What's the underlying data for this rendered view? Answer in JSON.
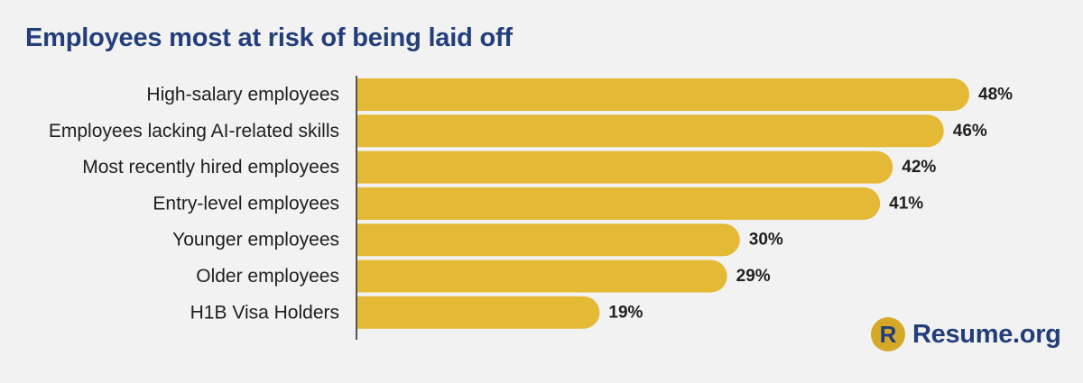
{
  "chart_data": {
    "type": "bar",
    "orientation": "horizontal",
    "title": "Employees most at risk of being laid off",
    "categories": [
      "High-salary employees",
      "Employees lacking AI-related skills",
      "Most recently hired employees",
      "Entry-level employees",
      "Younger employees",
      "Older employees",
      "H1B Visa Holders"
    ],
    "values": [
      48,
      46,
      42,
      41,
      30,
      29,
      19
    ],
    "value_labels": [
      "48%",
      "46%",
      "42%",
      "41%",
      "30%",
      "29%",
      "19%"
    ],
    "unit": "%",
    "xlim": [
      0,
      48
    ],
    "bar_color": "#e4b935",
    "grid": false,
    "legend": "none"
  },
  "brand": {
    "logo_letter": "R",
    "name": "Resume.org",
    "color": "#233e7a",
    "accent": "#d5a828"
  }
}
